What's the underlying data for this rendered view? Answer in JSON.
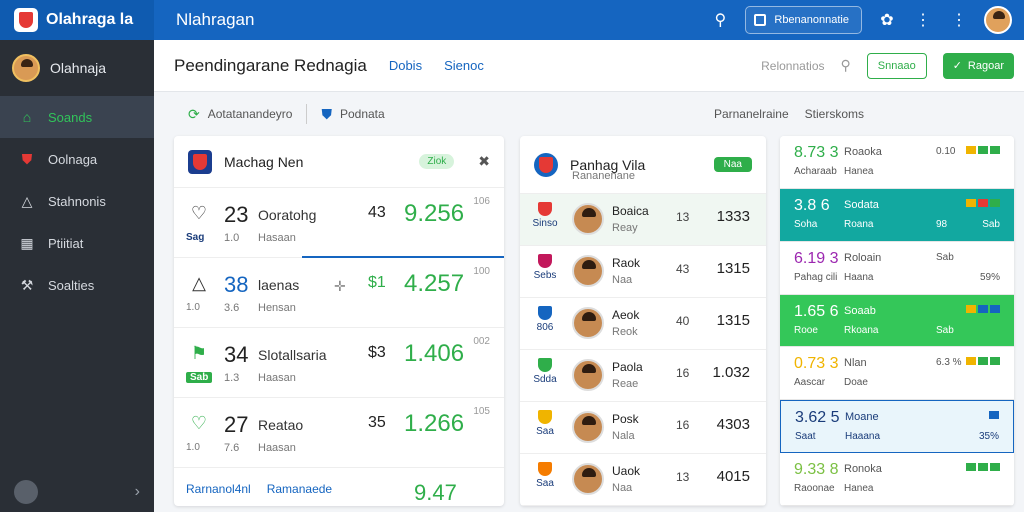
{
  "topbar": {
    "brand": "Olahraga la",
    "title": "Nlahragan",
    "pill_label": "Rbenanonnatie"
  },
  "sidebar": {
    "user": "Olahnaja",
    "items": [
      {
        "label": "Soands",
        "icon": "home-icon",
        "active": true
      },
      {
        "label": "Oolnaga",
        "icon": "shield-icon",
        "active": false
      },
      {
        "label": "Stahnonis",
        "icon": "shield-outline-icon",
        "active": false
      },
      {
        "label": "Ptiitiat",
        "icon": "grid-icon",
        "active": false
      },
      {
        "label": "Soalties",
        "icon": "tools-icon",
        "active": false
      }
    ]
  },
  "header": {
    "page_title": "Peendingarane Rednagia",
    "tab1": "Dobis",
    "tab2": "Sienoc",
    "search_label": "Relonnatios",
    "btn_outline": "Snnaao",
    "btn_green": "Ragoar"
  },
  "subbar": {
    "left1": "Aotatanandeyro",
    "left2": "Podnata",
    "right1": "Parnanelraine",
    "right2": "Stierskoms"
  },
  "match_card": {
    "title": "Machag Nen",
    "badge": "Ziok",
    "rows": [
      {
        "icon": "heart-shield-icon",
        "tag": "Sag",
        "num": "23",
        "name": "Ooratohg",
        "sub1": "1.0",
        "sub2": "Hasaan",
        "mid": "43",
        "big": "9.256",
        "small": "106"
      },
      {
        "icon": "shield-outline-icon",
        "tag": "1.0",
        "num": "38",
        "name": "laenas",
        "sub1": "3.6",
        "sub2": "Hensan",
        "mid": "$1",
        "big": "4.257",
        "small": "100"
      },
      {
        "icon": "flag-icon",
        "tag": "Sab",
        "num": "34",
        "name": "Slotallsaria",
        "sub1": "1.3",
        "sub2": "Haasan",
        "mid": "$3",
        "big": "1.406",
        "small": "002"
      },
      {
        "icon": "heart-shield-icon",
        "tag": "1.0",
        "num": "27",
        "name": "Reatao",
        "sub1": "7.6",
        "sub2": "Haasan",
        "mid": "35",
        "big": "1.266",
        "small": "105"
      }
    ],
    "footer1": "Rarnanol4nl",
    "footer2": "Ramanaede",
    "footer_val": "9.47"
  },
  "player_card": {
    "title": "Panhag Vila",
    "sub": "Rananenane",
    "badge": "Naa",
    "rows": [
      {
        "badge": "Sinso",
        "shield": "#e53935",
        "name": "Boaica",
        "sub": "Reay",
        "col": "13",
        "val": "1333"
      },
      {
        "badge": "Sebs",
        "shield": "#c2185b",
        "name": "Raok",
        "sub": "Naa",
        "col": "43",
        "val": "1315"
      },
      {
        "badge": "806",
        "shield": "#1565c0",
        "name": "Aeok",
        "sub": "Reok",
        "col": "40",
        "val": "1315"
      },
      {
        "badge": "Sdda",
        "shield": "#2fae4a",
        "name": "Paola",
        "sub": "Reae",
        "col": "16",
        "val": "1.032"
      },
      {
        "badge": "Saa",
        "shield": "#f0b400",
        "name": "Posk",
        "sub": "Nala",
        "col": "16",
        "val": "4303"
      },
      {
        "badge": "Saa",
        "shield": "#f57c00",
        "name": "Uaok",
        "sub": "Naa",
        "col": "13",
        "val": "4015"
      }
    ]
  },
  "stats_card": {
    "rows": [
      {
        "val": "8.73 3",
        "lbl": "Roaoka",
        "sub1": "Acharaab",
        "sub2": "Hanea",
        "r1": "0.10",
        "r2": "",
        "r3": "",
        "bg": "#ffffff",
        "valc": "#2fae4a",
        "txt": "#555",
        "bars": [
          "#f0b400",
          "#2fae4a",
          "#2fae4a"
        ]
      },
      {
        "val": "3.8 6",
        "lbl": "Sodata",
        "sub1": "Soha",
        "sub2": "Roana",
        "r1": "",
        "r2": "98",
        "r3": "Sab",
        "bg": "#12a8a0",
        "valc": "#ffffff",
        "txt": "#ffffff",
        "bars": [
          "#f0b400",
          "#e53935",
          "#2fae4a"
        ]
      },
      {
        "val": "6.19 3",
        "lbl": "Roloain",
        "sub1": "Pahag cili",
        "sub2": "Haana",
        "r1": "Sab",
        "r2": "",
        "r3": "59%",
        "bg": "#ffffff",
        "valc": "#9c27b0",
        "txt": "#555",
        "bars": []
      },
      {
        "val": "1.65 6",
        "lbl": "Soaab",
        "sub1": "Rooe",
        "sub2": "Rkoana",
        "r1": "",
        "r2": "Sab",
        "r3": "",
        "bg": "#34c759",
        "valc": "#ffffff",
        "txt": "#ffffff",
        "bars": [
          "#f0b400",
          "#1565c0",
          "#1565c0"
        ]
      },
      {
        "val": "0.73 3",
        "lbl": "Nlan",
        "sub1": "Aascar",
        "sub2": "Doae",
        "r1": "6.3 %",
        "r2": "",
        "r3": "",
        "bg": "#ffffff",
        "valc": "#f0b400",
        "txt": "#555",
        "bars": [
          "#f0b400",
          "#2fae4a",
          "#2fae4a"
        ]
      },
      {
        "val": "3.62 5",
        "lbl": "Moane",
        "sub1": "Saat",
        "sub2": "Haaana",
        "r1": "",
        "r2": "",
        "r3": "35%",
        "bg": "#e9f5fb",
        "valc": "#1a3c7a",
        "txt": "#1a3c7a",
        "bars": [
          "#1565c0"
        ]
      },
      {
        "val": "9.33 8",
        "lbl": "Ronoka",
        "sub1": "Raoonae",
        "sub2": "Hanea",
        "r1": "",
        "r2": "",
        "r3": "",
        "bg": "#ffffff",
        "valc": "#7bc043",
        "txt": "#555",
        "bars": [
          "#2fae4a",
          "#2fae4a",
          "#2fae4a"
        ]
      }
    ]
  }
}
